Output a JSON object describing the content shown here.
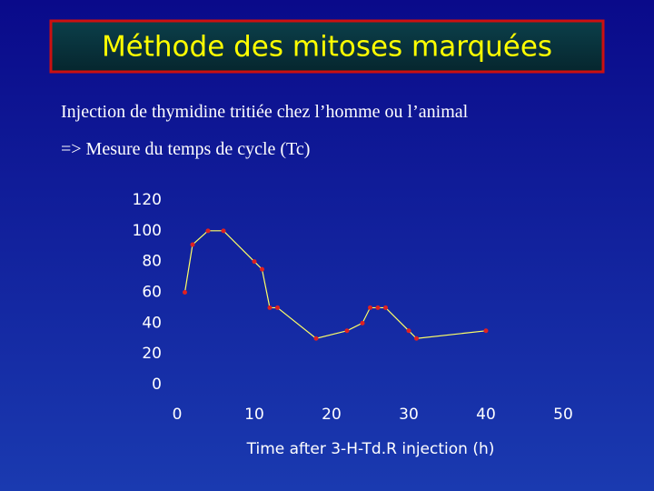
{
  "chart_data": {
    "type": "line",
    "title": "Méthode des mitoses marquées",
    "subtitle": [
      "Injection de thymidine tritiée chez l’homme ou l’animal",
      "=> Mesure du temps de cycle (Tc)"
    ],
    "x_label": "Time after 3-H-Td.R injection (h)",
    "x": [
      1,
      2,
      4,
      6,
      10,
      11,
      12,
      13,
      18,
      22,
      24,
      25,
      26,
      27,
      30,
      31,
      40
    ],
    "series": [
      {
        "color": "#e02020",
        "values": [
          60,
          91,
          100,
          100,
          80,
          75,
          50,
          50,
          30,
          35,
          40,
          50,
          50,
          50,
          35,
          30,
          35
        ]
      }
    ],
    "xlim": [
      0,
      50
    ],
    "xticks": [
      0,
      10,
      20,
      30,
      40,
      50
    ],
    "ylim": [
      0,
      120
    ],
    "yticks": [
      0,
      20,
      40,
      60,
      80,
      100,
      120
    ],
    "grid": false
  }
}
